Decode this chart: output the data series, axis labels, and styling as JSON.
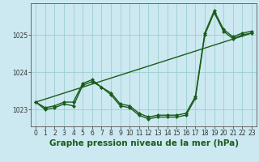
{
  "title": "Graphe pression niveau de la mer (hPa)",
  "bg_color": "#cce8f0",
  "grid_color": "#9dcfcf",
  "line_color": "#1a5c1a",
  "xlim": [
    -0.5,
    23.5
  ],
  "ylim": [
    1022.55,
    1025.85
  ],
  "yticks": [
    1023,
    1024,
    1025
  ],
  "xticks": [
    0,
    1,
    2,
    3,
    4,
    5,
    6,
    7,
    8,
    9,
    10,
    11,
    12,
    13,
    14,
    15,
    16,
    17,
    18,
    19,
    20,
    21,
    22,
    23
  ],
  "series_main": [
    1023.2,
    1023.0,
    1023.05,
    1023.15,
    1023.1,
    1023.65,
    1023.75,
    1023.6,
    1023.4,
    1023.1,
    1023.05,
    1022.85,
    1022.75,
    1022.8,
    1022.8,
    1022.8,
    1022.85,
    1023.3,
    1025.0,
    1025.6,
    1025.1,
    1024.9,
    1025.0,
    1025.05
  ],
  "series_upper": [
    1023.2,
    1023.05,
    1023.1,
    1023.2,
    1023.2,
    1023.7,
    1023.8,
    1023.6,
    1023.45,
    1023.15,
    1023.1,
    1022.9,
    1022.8,
    1022.85,
    1022.85,
    1022.85,
    1022.9,
    1023.35,
    1025.05,
    1025.65,
    1025.15,
    1024.95,
    1025.05,
    1025.1
  ],
  "trend_x": [
    0,
    23
  ],
  "trend_y": [
    1023.2,
    1025.05
  ],
  "marker": "D",
  "markersize": 2.5,
  "linewidth": 1.0,
  "title_fontsize": 7.5,
  "tick_fontsize": 5.5
}
